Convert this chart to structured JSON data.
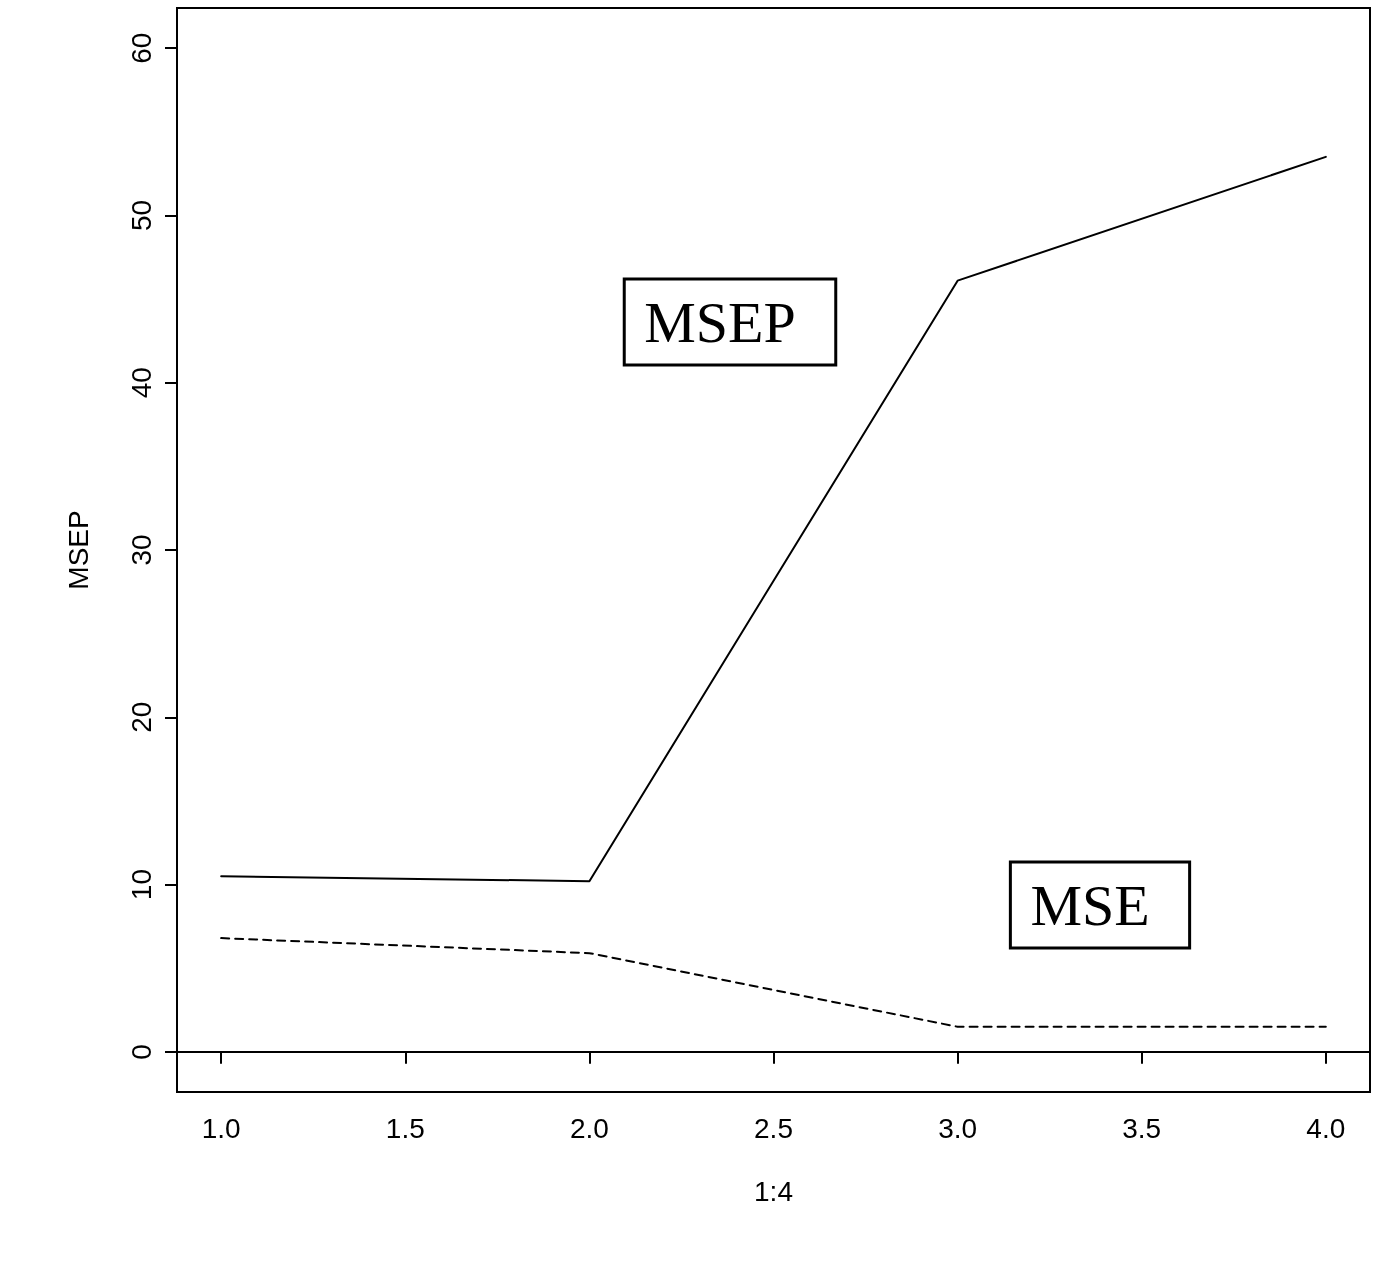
{
  "chart_data": {
    "type": "line",
    "xlabel": "1:4",
    "ylabel": "MSEP",
    "x": [
      1,
      2,
      3,
      4
    ],
    "xlim": [
      0.88,
      4.12
    ],
    "xticks": [
      {
        "value": 1,
        "label": "1.0"
      },
      {
        "value": 1.5,
        "label": "1.5"
      },
      {
        "value": 2,
        "label": "2.0"
      },
      {
        "value": 2.5,
        "label": "2.5"
      },
      {
        "value": 3,
        "label": "3.0"
      },
      {
        "value": 3.5,
        "label": "3.5"
      },
      {
        "value": 4,
        "label": "4.0"
      }
    ],
    "ylim": [
      -2.4,
      62.4
    ],
    "yticks": [
      0,
      10,
      20,
      30,
      40,
      50,
      60
    ],
    "marker": "none",
    "series": [
      {
        "color": "#000000",
        "line_style": "solid",
        "values": [
          10.5,
          10.2,
          46.1,
          53.5
        ]
      },
      {
        "color": "#000000",
        "line_style": "dashed",
        "values": [
          6.8,
          5.9,
          1.5,
          1.5
        ]
      }
    ],
    "annotations": [
      "MSEP",
      "MSE"
    ]
  }
}
